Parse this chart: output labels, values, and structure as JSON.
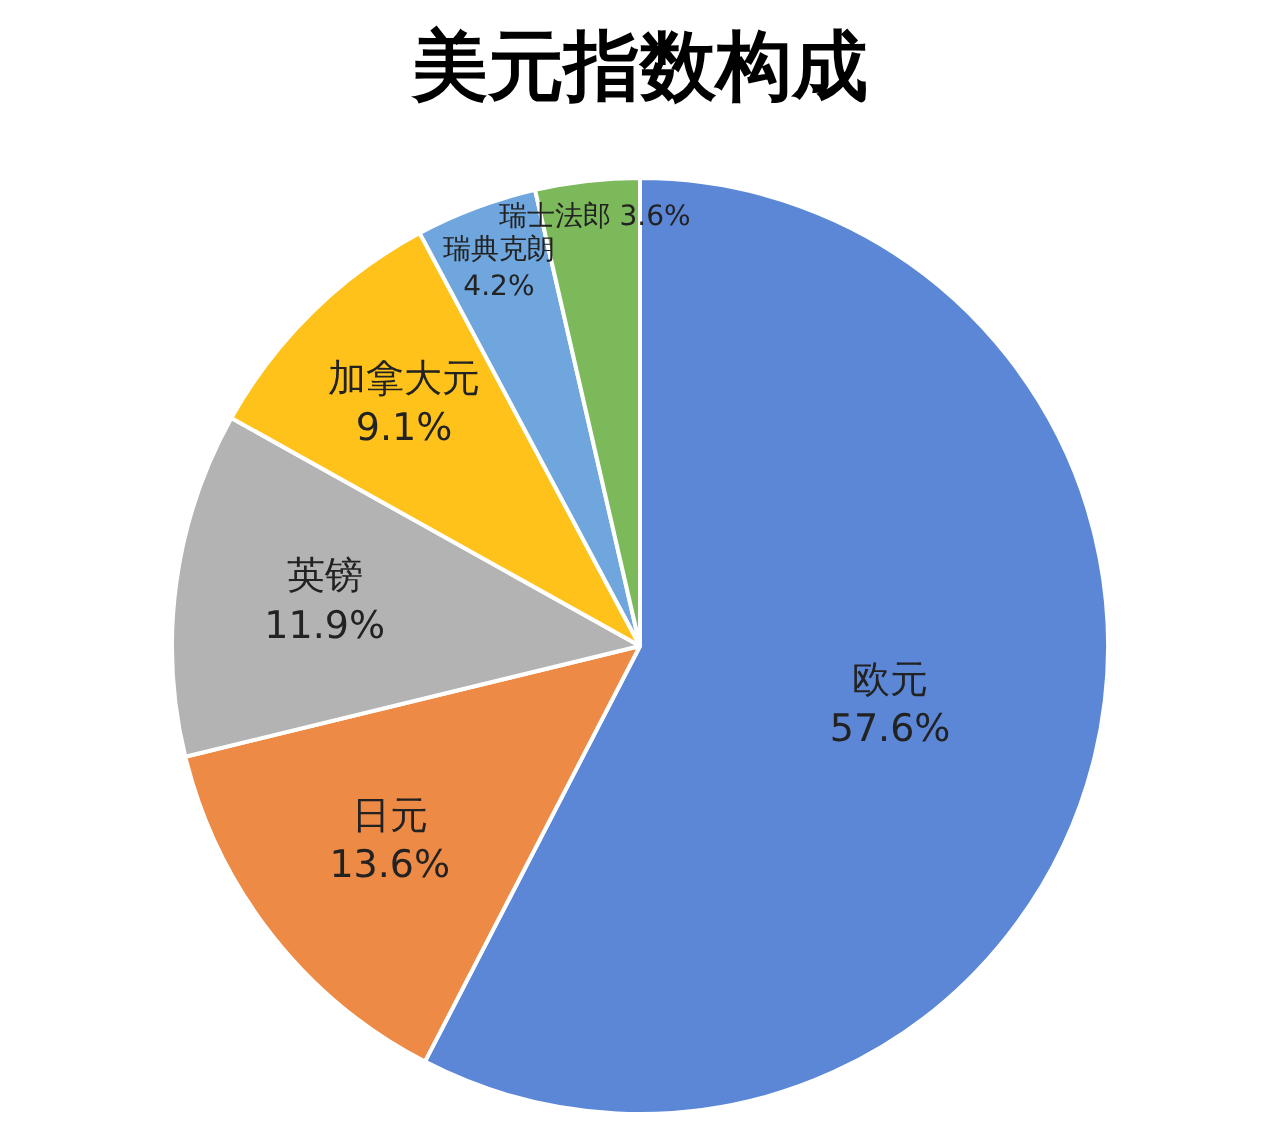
{
  "chart_data": {
    "type": "pie",
    "title": "美元指数构成",
    "categories": [
      "欧元",
      "日元",
      "英镑",
      "加拿大元",
      "瑞典克朗",
      "瑞士法郎"
    ],
    "values": [
      57.6,
      13.6,
      11.9,
      9.1,
      4.2,
      3.6
    ],
    "value_labels": [
      "57.6%",
      "13.6%",
      "11.9%",
      "9.1%",
      "4.2%",
      "3.6%"
    ],
    "colors": [
      "#5b87d6",
      "#ed8a45",
      "#b3b3b3",
      "#ffc21a",
      "#6fa6dd",
      "#7cb95a"
    ]
  }
}
